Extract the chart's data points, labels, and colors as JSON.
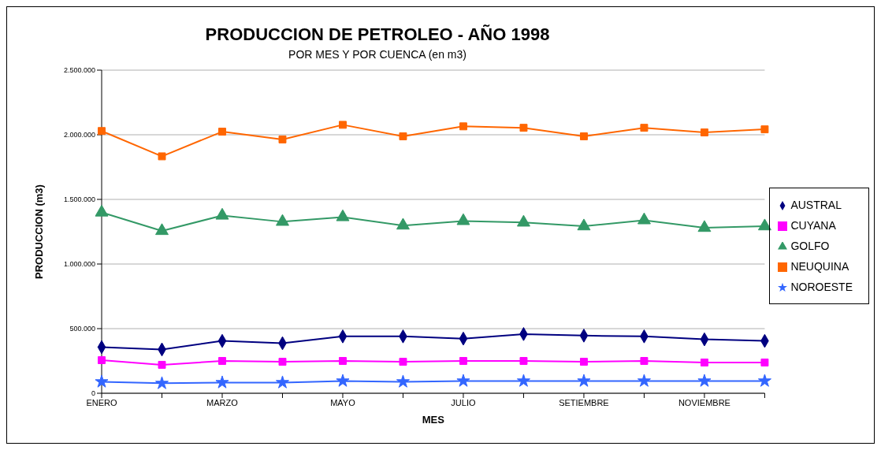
{
  "chart_data": {
    "type": "line",
    "title": "PRODUCCION DE PETROLEO - AÑO 1998",
    "subtitle": "POR MES Y POR CUENCA (en m3)",
    "xlabel": "MES",
    "ylabel": "PRODUCCION (m3)",
    "categories": [
      "ENERO",
      null,
      "MARZO",
      null,
      "MAYO",
      null,
      "JULIO",
      null,
      "SETIEMBRE",
      null,
      "NOVIEMBRE",
      null
    ],
    "ylim": [
      0,
      2500000
    ],
    "yticks": [
      {
        "value": 0,
        "label": "0"
      },
      {
        "value": 500000,
        "label": "500.000"
      },
      {
        "value": 1000000,
        "label": "1.000.000"
      },
      {
        "value": 1500000,
        "label": "1.500.000"
      },
      {
        "value": 2000000,
        "label": "2.000.000"
      },
      {
        "value": 2500000,
        "label": "2.500.000"
      }
    ],
    "grid": "y",
    "legend": "right",
    "series": [
      {
        "name": "AUSTRAL",
        "color": "#000080",
        "marker": "diamond",
        "values": [
          357000,
          339000,
          405000,
          387000,
          440000,
          440000,
          423000,
          458000,
          446000,
          440000,
          417000,
          405000
        ]
      },
      {
        "name": "CUYANA",
        "color": "#ff00ff",
        "marker": "square",
        "values": [
          256000,
          220000,
          250000,
          244000,
          250000,
          244000,
          250000,
          250000,
          244000,
          250000,
          238000,
          238000
        ]
      },
      {
        "name": "GOLFO",
        "color": "#339966",
        "marker": "triangle",
        "values": [
          1399000,
          1256000,
          1375000,
          1327000,
          1363000,
          1298000,
          1333000,
          1321000,
          1292000,
          1339000,
          1280000,
          1292000
        ]
      },
      {
        "name": "NEUQUINA",
        "color": "#ff6600",
        "marker": "square",
        "values": [
          2029000,
          1833000,
          2024000,
          1964000,
          2077000,
          1988000,
          2065000,
          2054000,
          1988000,
          2054000,
          2018000,
          2042000
        ]
      },
      {
        "name": "NOROESTE",
        "color": "#3366ff",
        "marker": "star",
        "values": [
          89000,
          77000,
          83000,
          83000,
          95000,
          89000,
          95000,
          95000,
          95000,
          95000,
          95000,
          95000
        ]
      }
    ]
  }
}
